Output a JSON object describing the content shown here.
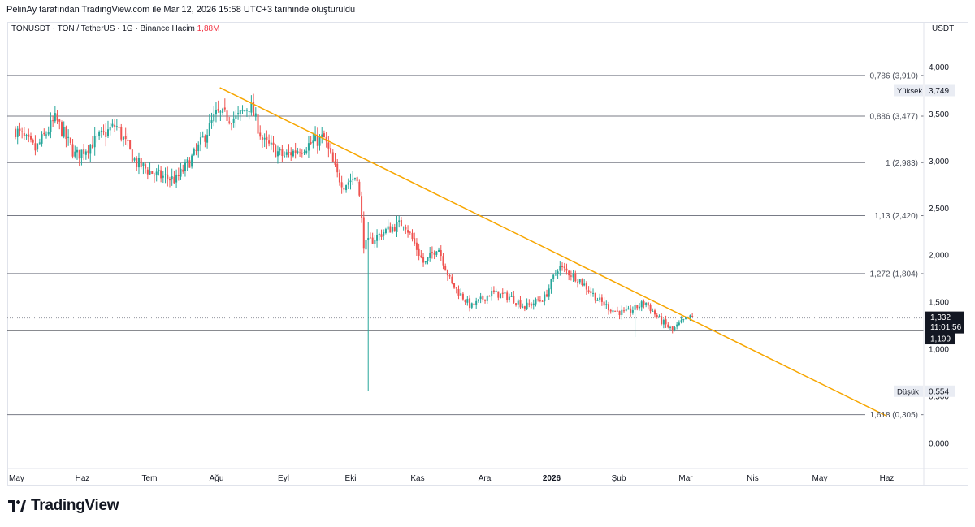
{
  "header": {
    "attribution": "PelinAy tarafından TradingView.com ile Mar 12, 2026 15:58 UTC+3 tarihinde oluşturuldu",
    "symbol_info": "TONUSDT · TON / TetherUS · 1G · Binance",
    "volume_label": "Hacim",
    "volume_value": "1,88M",
    "currency": "USDT"
  },
  "branding": {
    "logo_text": "TradingView"
  },
  "colors": {
    "up": "#26a69a",
    "down": "#ef5350",
    "trendline": "#f7a600",
    "fib_line": "#787b86",
    "axis_text": "#131722",
    "volume_red": "#f23645"
  },
  "chart_data": {
    "type": "candlestick",
    "title": "TONUSDT · TON / TetherUS · 1G · Binance",
    "ylabel": "USDT",
    "ylim": [
      -0.25,
      4.3
    ],
    "y_ticks": [
      0,
      0.5,
      1,
      1.5,
      2,
      2.5,
      3,
      3.5,
      4
    ],
    "y_tick_labels": [
      "0,000",
      "0,500",
      "1,000",
      "1,500",
      "2,000",
      "2,500",
      "3,000",
      "3,500",
      "4,000"
    ],
    "x_ticks": [
      {
        "label": "May",
        "bold": false
      },
      {
        "label": "Haz",
        "bold": false
      },
      {
        "label": "Tem",
        "bold": false
      },
      {
        "label": "Ağu",
        "bold": false
      },
      {
        "label": "Eyl",
        "bold": false
      },
      {
        "label": "Eki",
        "bold": false
      },
      {
        "label": "Kas",
        "bold": false
      },
      {
        "label": "Ara",
        "bold": false
      },
      {
        "label": "2026",
        "bold": true
      },
      {
        "label": "Şub",
        "bold": false
      },
      {
        "label": "Mar",
        "bold": false
      },
      {
        "label": "Nis",
        "bold": false
      },
      {
        "label": "May",
        "bold": false
      },
      {
        "label": "Haz",
        "bold": false
      }
    ],
    "fib_levels": [
      {
        "label": "0,786 (3,910)",
        "value": 3.91
      },
      {
        "label": "0,886 (3,477)",
        "value": 3.477
      },
      {
        "label": "1 (2,983)",
        "value": 2.983
      },
      {
        "label": "1,13 (2,420)",
        "value": 2.42
      },
      {
        "label": "1,272 (1,804)",
        "value": 1.804
      },
      {
        "label": "1,618 (0,305)",
        "value": 0.305
      }
    ],
    "support_level": 1.199,
    "trendline": {
      "start": {
        "month": 3.05,
        "price": 3.78
      },
      "end": {
        "month": 13.0,
        "price": 0.29
      }
    },
    "high_marker": {
      "label": "Yüksek",
      "value": "3,749",
      "price": 3.749
    },
    "low_marker": {
      "label": "Düşük",
      "value": "0,554",
      "price": 0.554
    },
    "last_price": {
      "value": "1,332",
      "countdown": "11:01:56",
      "price": 1.332
    },
    "support_badge": {
      "value": "1,199",
      "price": 1.199
    },
    "key_points": [
      [
        0.0,
        3.33
      ],
      [
        0.3,
        3.12
      ],
      [
        0.6,
        3.45
      ],
      [
        0.9,
        3.05
      ],
      [
        1.2,
        3.22
      ],
      [
        1.5,
        3.38
      ],
      [
        1.8,
        2.98
      ],
      [
        2.1,
        2.85
      ],
      [
        2.4,
        2.8
      ],
      [
        2.7,
        3.1
      ],
      [
        3.0,
        3.5
      ],
      [
        3.3,
        3.45
      ],
      [
        3.5,
        3.6
      ],
      [
        3.7,
        3.2
      ],
      [
        4.0,
        3.05
      ],
      [
        4.3,
        3.15
      ],
      [
        4.6,
        3.25
      ],
      [
        4.8,
        2.85
      ],
      [
        4.9,
        2.75
      ],
      [
        5.1,
        2.85
      ],
      [
        5.2,
        2.1
      ],
      [
        5.5,
        2.25
      ],
      [
        5.8,
        2.35
      ],
      [
        6.1,
        1.9
      ],
      [
        6.3,
        2.1
      ],
      [
        6.5,
        1.7
      ],
      [
        6.8,
        1.45
      ],
      [
        7.1,
        1.6
      ],
      [
        7.4,
        1.55
      ],
      [
        7.6,
        1.45
      ],
      [
        7.9,
        1.55
      ],
      [
        8.1,
        1.88
      ],
      [
        8.4,
        1.75
      ],
      [
        8.7,
        1.52
      ],
      [
        8.9,
        1.42
      ],
      [
        9.1,
        1.38
      ],
      [
        9.4,
        1.5
      ],
      [
        9.6,
        1.32
      ],
      [
        9.8,
        1.2
      ],
      [
        10.0,
        1.32
      ],
      [
        10.1,
        1.34
      ]
    ],
    "wick_events": [
      {
        "month": 5.25,
        "low": 0.554,
        "high": 2.35
      },
      {
        "month": 9.25,
        "low": 1.13,
        "high": 1.45
      }
    ]
  }
}
